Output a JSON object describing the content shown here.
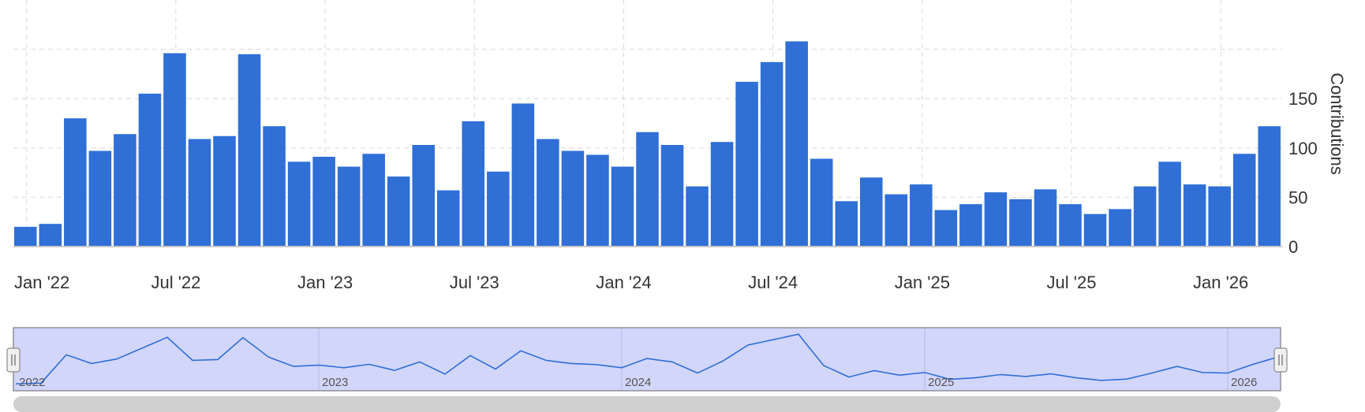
{
  "chart_data": {
    "type": "bar",
    "xlabel": "",
    "ylabel": "Contributions",
    "y_axis_side": "right",
    "ylim": [
      0,
      210
    ],
    "yticks": [
      0,
      50,
      100,
      150
    ],
    "x_tick_labels": [
      "Jan '22",
      "Jul '22",
      "Jan '23",
      "Jul '23",
      "Jan '24",
      "Jul '24",
      "Jan '25",
      "Jul '25",
      "Jan '26"
    ],
    "grid": true,
    "categories": [
      "2022-01",
      "2022-02",
      "2022-03",
      "2022-04",
      "2022-05",
      "2022-06",
      "2022-07",
      "2022-08",
      "2022-09",
      "2022-10",
      "2022-11",
      "2022-12",
      "2023-01",
      "2023-02",
      "2023-03",
      "2023-04",
      "2023-05",
      "2023-06",
      "2023-07",
      "2023-08",
      "2023-09",
      "2023-10",
      "2023-11",
      "2023-12",
      "2024-01",
      "2024-02",
      "2024-03",
      "2024-04",
      "2024-05",
      "2024-06",
      "2024-07",
      "2024-08",
      "2024-09",
      "2024-10",
      "2024-11",
      "2024-12",
      "2025-01",
      "2025-02",
      "2025-03",
      "2025-04",
      "2025-05",
      "2025-06",
      "2025-07",
      "2025-08",
      "2025-09",
      "2025-10",
      "2025-11",
      "2025-12",
      "2026-01",
      "2026-02",
      "2026-03"
    ],
    "values": [
      20,
      23,
      130,
      97,
      114,
      155,
      196,
      109,
      112,
      195,
      122,
      86,
      91,
      81,
      94,
      71,
      103,
      57,
      127,
      76,
      145,
      109,
      97,
      93,
      81,
      116,
      103,
      61,
      106,
      167,
      187,
      208,
      89,
      46,
      70,
      53,
      63,
      37,
      43,
      55,
      48,
      58,
      43,
      33,
      38,
      61,
      86,
      63,
      61,
      94,
      122
    ],
    "bar_color": "#2f6fd6",
    "navigator": {
      "year_labels": [
        "2022",
        "2023",
        "2024",
        "2025",
        "2026"
      ],
      "selection_color": "#d2d6fa",
      "line_color": "#2f6fd6"
    }
  }
}
